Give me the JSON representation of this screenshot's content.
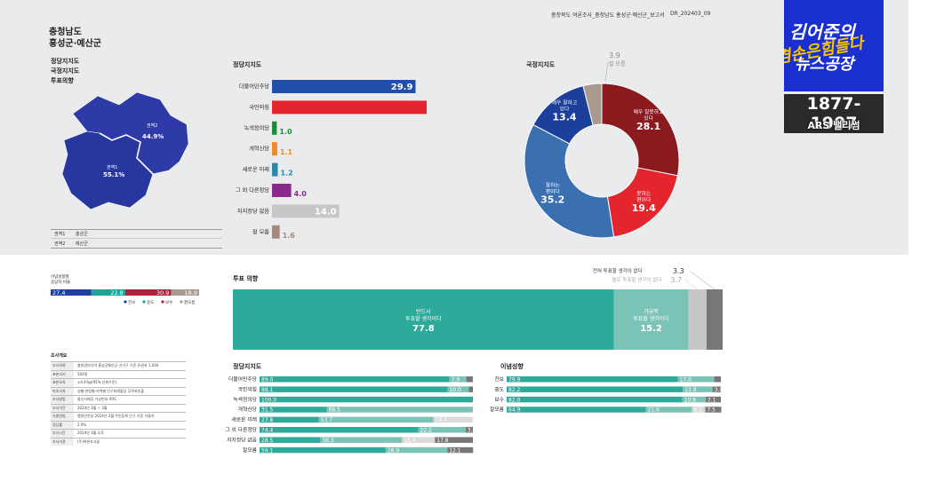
{
  "header": {
    "report": "충청북도 여론조사_충청남도 홍성군·예산군_보고서",
    "code": "DR_202403_09"
  },
  "region": {
    "title_line1": "충청남도",
    "title_line2": "홍성군·예산군",
    "subs": [
      "정당지지도",
      "국정지지도",
      "투표의향"
    ],
    "map_labels": [
      {
        "name": "권역2",
        "value": "44.9%"
      },
      {
        "name": "권역1",
        "value": "55.1%"
      }
    ],
    "zones": [
      {
        "name": "권역1",
        "value": "홍성군"
      },
      {
        "name": "권역2",
        "value": "예산군"
      }
    ]
  },
  "logo": {
    "line1": "김어준의",
    "line2": "겸손은힘들다",
    "line3": "뉴스공장",
    "years": "1877-1907",
    "ars": "ARS 밸리썸"
  },
  "ideology": {
    "title_lines": [
      "이념성향별",
      "응답자 비율"
    ],
    "values": [
      "27.4",
      "22.8",
      "30.9",
      "18.9"
    ],
    "legend": [
      "진보",
      "중도",
      "보수",
      "잘모름"
    ],
    "colors": [
      "#1e3fa0",
      "#1aa596",
      "#b0213e",
      "#a89a93"
    ]
  },
  "survey": {
    "title": "조사개요",
    "rows": [
      [
        "조사의뢰",
        "충청권미디어 홍성군예산군 선거구 기준 유권자 1,004"
      ],
      [
        "표본크기",
        "504명"
      ],
      [
        "표본오차",
        "±4.4%p(95% 신뢰수준)"
      ],
      [
        "피조사자",
        "성별·연령별·지역별 인구비례할당 무작위추출"
      ],
      [
        "조사방법",
        "통신사제공 가상번호 ARS"
      ],
      [
        "조사기간",
        "2024년 3월 ~ 3월"
      ],
      [
        "가중방법",
        "행정안전부 2024년 2월 주민등록 인구 기준 가중치"
      ],
      [
        "응답률",
        "2.9%"
      ],
      [
        "조사시간",
        "2024년 3월 오후"
      ],
      [
        "조사기관",
        "(주)여론조사꽃"
      ]
    ]
  },
  "chart_data": [
    {
      "type": "bar",
      "title": "정당지지도",
      "categories": [
        "더불어민주당",
        "국민의힘",
        "녹색정의당",
        "개혁신당",
        "새로운 미래",
        "그 외 다른정당",
        "지지정당 없음",
        "잘 모름"
      ],
      "values": [
        29.9,
        47.1,
        1.0,
        1.1,
        1.2,
        4.0,
        14.0,
        1.6
      ],
      "colors": [
        "#1f4fa8",
        "#e3262e",
        "#1e8a3a",
        "#ef8a2a",
        "#2c87a8",
        "#8a2a8f",
        "#c7c7c7",
        "#a38a7c"
      ],
      "xlim": [
        0,
        50
      ]
    },
    {
      "type": "pie",
      "title": "국정지지도",
      "slices": [
        {
          "label": "매우 잘하고 있다",
          "value": 13.4,
          "color": "#1d3f9c"
        },
        {
          "label": "매우 잘못하고 있다",
          "value": 28.1,
          "color": "#8b1a1f"
        },
        {
          "label": "못하는 편이다",
          "value": 19.4,
          "color": "#e3262e"
        },
        {
          "label": "잘하는 편이다",
          "value": 35.2,
          "color": "#3a6fb0"
        },
        {
          "label": "잘 모름",
          "value": 3.9,
          "color": "#a89a8c"
        }
      ]
    },
    {
      "type": "bar",
      "title": "투표 의향",
      "stacked": true,
      "segments": [
        {
          "label": "반드시 투표할 생각이다",
          "value": 77.8,
          "color": "#2eaa9a"
        },
        {
          "label": "가급적 투표할 생각이다",
          "value": 15.2,
          "color": "#7bc3b7"
        },
        {
          "label": "별로 투표할 생각이 없다",
          "value": 3.7,
          "color": "#c7c7c7"
        },
        {
          "label": "전혀 투표할 생각이 없다",
          "value": 3.3,
          "color": "#777777"
        }
      ]
    },
    {
      "type": "bar",
      "title": "정당지지도",
      "stacked": true,
      "categories": [
        "더불어민주당",
        "국민의힘",
        "녹색정의당",
        "개혁신당",
        "새로운 미래",
        "그 외 다른정당",
        "지지정당 없음",
        "잘모름"
      ],
      "series": [
        {
          "values": [
            89.0,
            88.1,
            100.0,
            31.5,
            27.8,
            74.4,
            28.5,
            59.1
          ],
          "color": "#2eaa9a"
        },
        {
          "values": [
            7.9,
            10.0,
            0,
            68.5,
            53.7,
            22.2,
            38.3,
            28.9
          ],
          "color": "#7bc3b7"
        },
        {
          "values": [
            0,
            0,
            0,
            0,
            18.4,
            0,
            15.4,
            0
          ],
          "color": "#d9d9d9"
        },
        {
          "values": [
            3.1,
            1.9,
            0,
            0,
            0,
            3.4,
            17.8,
            12.1
          ],
          "color": "#777777"
        }
      ]
    },
    {
      "type": "bar",
      "title": "이념성향",
      "stacked": true,
      "categories": [
        "진보",
        "중도",
        "보수",
        "잘모름"
      ],
      "series": [
        {
          "values": [
            79.9,
            82.2,
            82.0,
            64.9
          ],
          "color": "#2eaa9a"
        },
        {
          "values": [
            17.0,
            13.9,
            10.9,
            21.6
          ],
          "color": "#7bc3b7"
        },
        {
          "values": [
            0,
            0,
            0,
            6.2
          ],
          "color": "#d9d9d9"
        },
        {
          "values": [
            3.1,
            3.9,
            7.1,
            7.5
          ],
          "color": "#777777"
        }
      ]
    }
  ]
}
